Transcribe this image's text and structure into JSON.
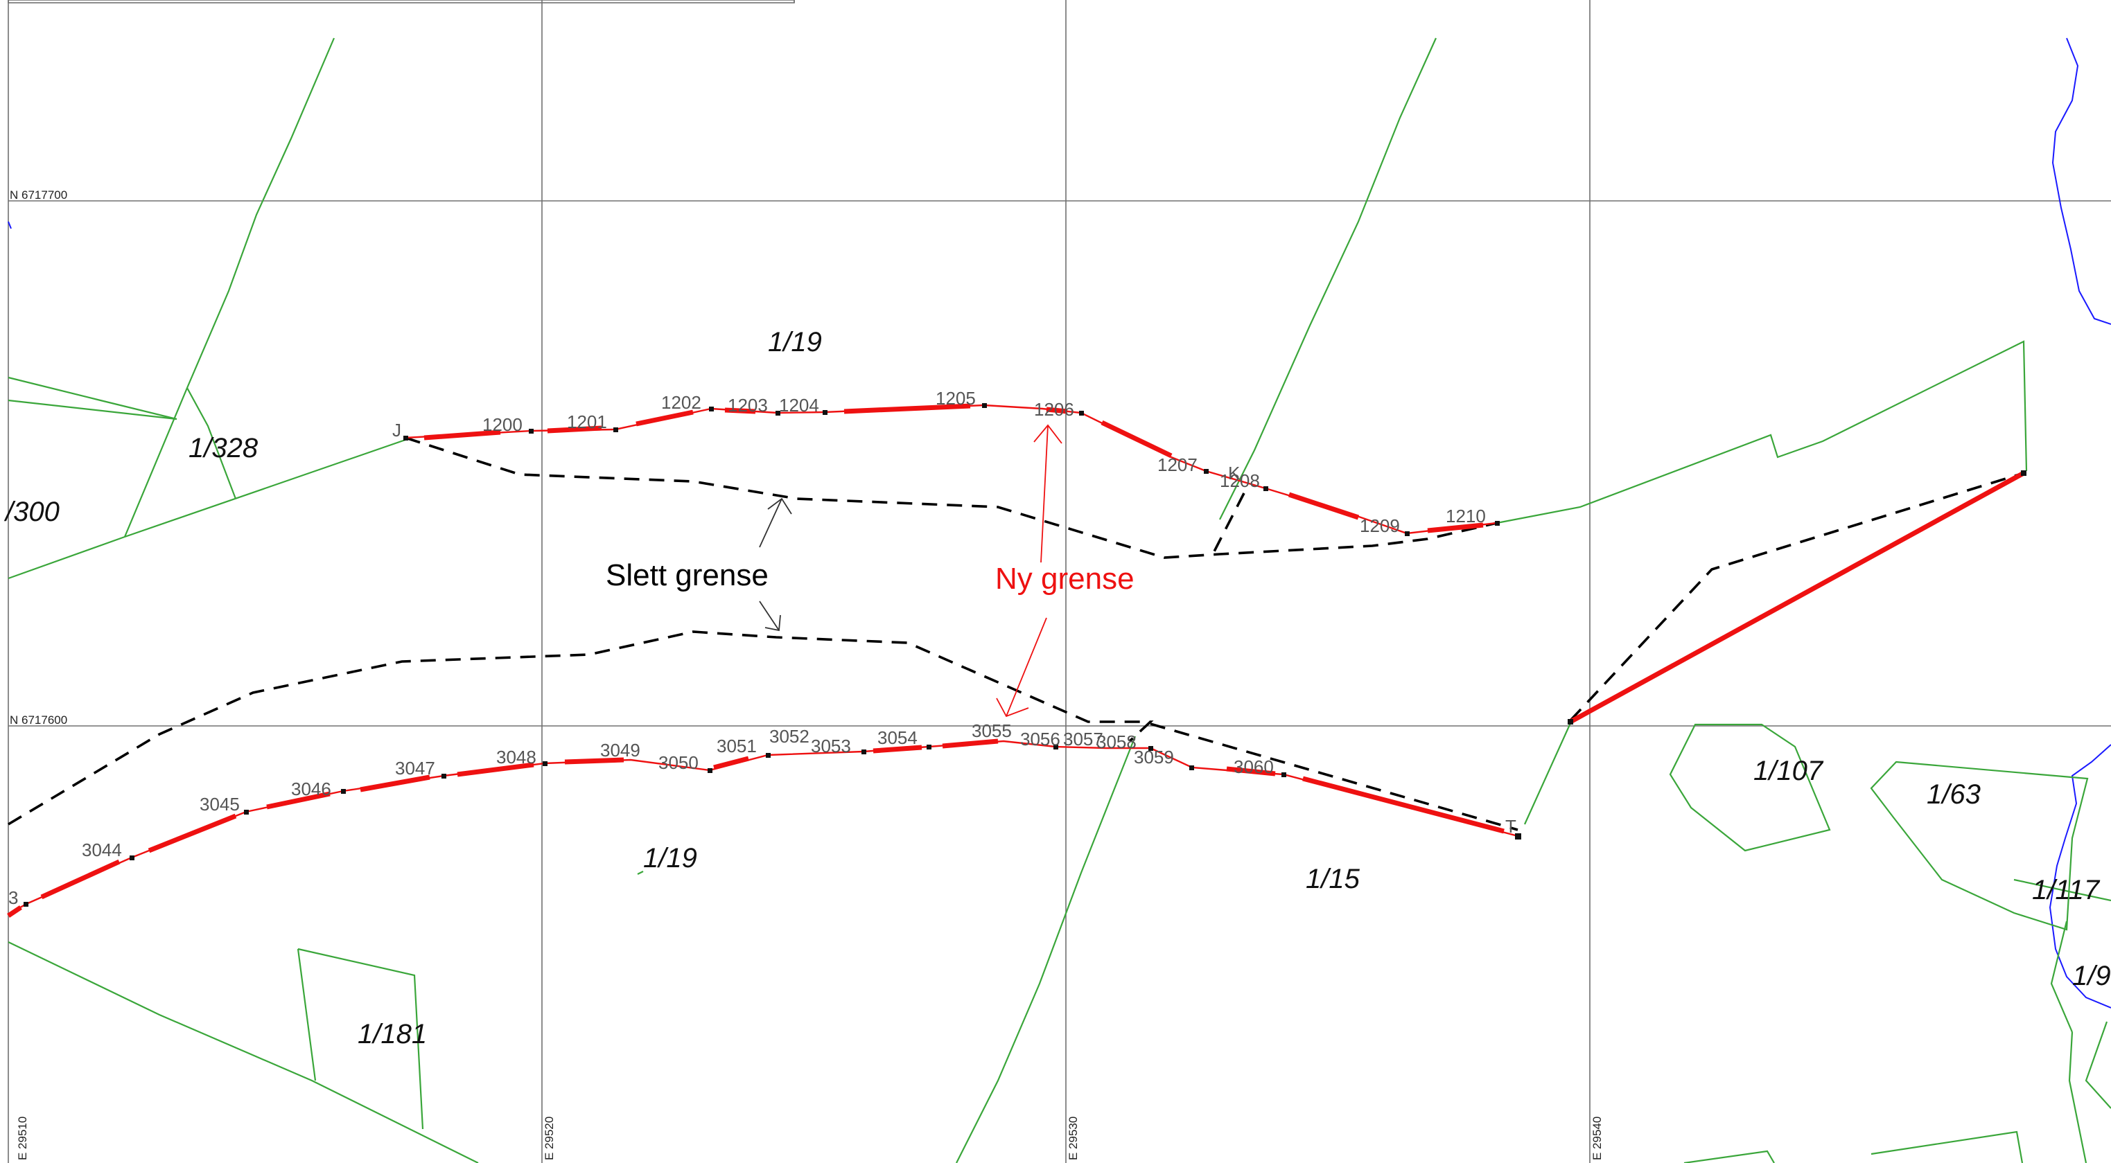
{
  "grid": {
    "northing_top": "N 6717700",
    "northing_bottom": "N 6717600",
    "easting_1": "E 29510",
    "easting_2": "E 29520",
    "easting_3": "E 29530",
    "easting_4": "E 29540"
  },
  "parcels": {
    "p_1_19_top": "1/19",
    "p_1_328": "1/328",
    "p_300": "/300",
    "p_1_19_bottom": "1/19",
    "p_1_181": "1/181",
    "p_1_15": "1/15",
    "p_1_107": "1/107",
    "p_1_63": "1/63",
    "p_1_117": "1/117",
    "p_1_9": "1/9"
  },
  "annotations": {
    "slett": "Slett grense",
    "ny": "Ny grense",
    "slett_color": "#000000",
    "ny_color": "#ee1111"
  },
  "points_north": [
    "J",
    "1200",
    "1201",
    "1202",
    "1203",
    "1204",
    "1205",
    "1206",
    "1207",
    "K",
    "1208",
    "1209",
    "1210"
  ],
  "points_south": [
    "3",
    "3044",
    "3045",
    "3046",
    "3047",
    "3048",
    "3049",
    "3050",
    "3051",
    "3052",
    "3053",
    "3054",
    "3055",
    "3056",
    "3057",
    "3058",
    "3059",
    "3060",
    "T"
  ]
}
